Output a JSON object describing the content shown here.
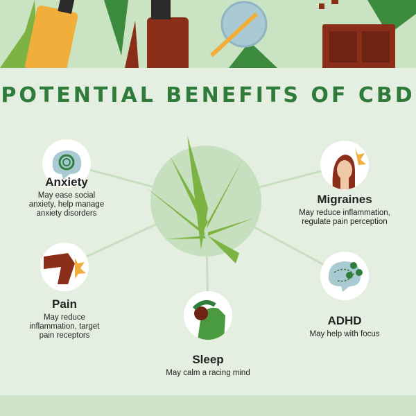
{
  "title": "POTENTIAL BENEFITS OF CBD",
  "colors": {
    "title": "#2f7b3c",
    "banner": "#c9e3c3",
    "background": "#e5efe1",
    "center_circle": "#c6e0bf",
    "leaf": "#7cb342"
  },
  "benefits": [
    {
      "name": "Anxiety",
      "desc": [
        "May ease social",
        "anxiety, help manage",
        "anxiety disorders"
      ],
      "icon": "brain-icon"
    },
    {
      "name": "Migraines",
      "desc": [
        "May reduce inflammation,",
        "regulate pain perception"
      ],
      "icon": "head-pain-icon"
    },
    {
      "name": "Pain",
      "desc": [
        "May reduce",
        "inflammation, target",
        "pain receptors"
      ],
      "icon": "joint-pain-icon"
    },
    {
      "name": "ADHD",
      "desc": [
        "May help with focus"
      ],
      "icon": "brain-focus-icon"
    },
    {
      "name": "Sleep",
      "desc": [
        "May calm a racing mind"
      ],
      "icon": "sleeping-person-icon"
    }
  ]
}
